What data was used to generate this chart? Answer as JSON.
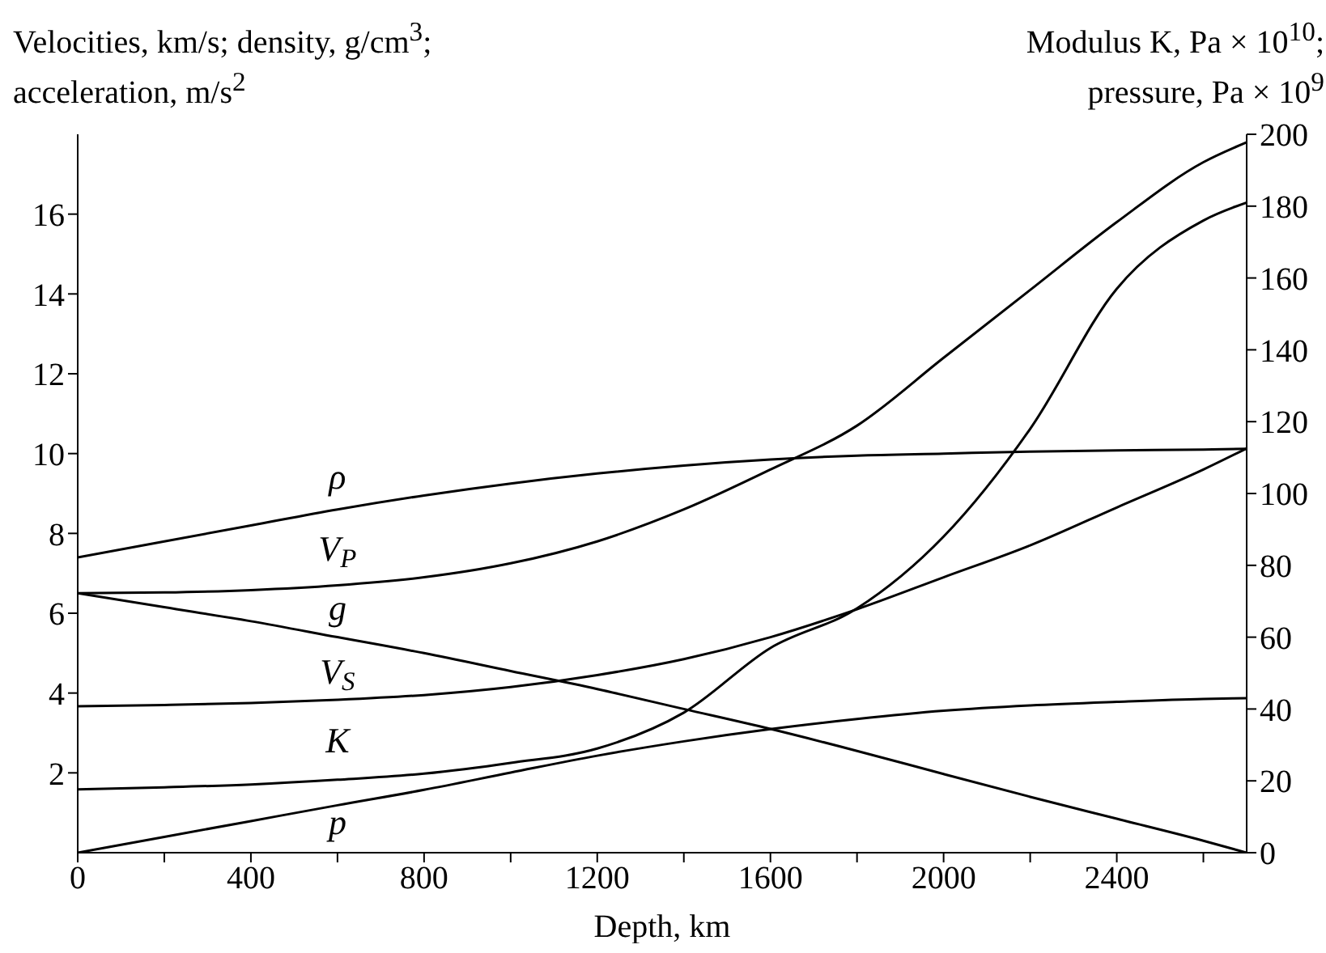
{
  "chart_data": {
    "type": "line",
    "xlabel": "Depth, km",
    "ylabel": "Velocities, km/s; density, g/cm$^{3}$; acceleration, m/s$^{2}$",
    "y2label": "Modulus K, Pa × 10$^{10}$; pressure, Pa × 10$^{9}$",
    "x": [
      0,
      200,
      400,
      600,
      800,
      1000,
      1200,
      1400,
      1600,
      1800,
      2000,
      2200,
      2400,
      2600,
      2700
    ],
    "series": [
      {
        "name": "ρ",
        "color": "#000000",
        "values": [
          7.4,
          7.8,
          8.2,
          8.6,
          8.95,
          9.25,
          9.5,
          9.7,
          9.85,
          9.95,
          10.0,
          10.05,
          10.08,
          10.1,
          10.12
        ]
      },
      {
        "name": "V$_{P}$",
        "color": "#000000",
        "values": [
          6.5,
          6.52,
          6.58,
          6.7,
          6.9,
          7.25,
          7.8,
          8.6,
          9.6,
          10.7,
          12.4,
          14.1,
          15.8,
          17.3,
          17.8
        ]
      },
      {
        "name": "g",
        "color": "#000000",
        "values": [
          6.5,
          6.15,
          5.8,
          5.4,
          5.0,
          4.55,
          4.1,
          3.6,
          3.1,
          2.55,
          1.97,
          1.4,
          0.85,
          0.3,
          0
        ]
      },
      {
        "name": "V$_{S}$",
        "color": "#000000",
        "values": [
          3.67,
          3.7,
          3.75,
          3.83,
          3.95,
          4.15,
          4.45,
          4.85,
          5.4,
          6.1,
          6.9,
          7.7,
          8.65,
          9.6,
          10.13
        ]
      },
      {
        "name": "K",
        "color": "#000000",
        "axis": "y2",
        "values": [
          17.6,
          18.2,
          19,
          20.3,
          22,
          25,
          29,
          39,
          57,
          68,
          88,
          118,
          157,
          176,
          181
        ]
      },
      {
        "name": "p",
        "color": "#000000",
        "axis": "y2",
        "values": [
          0,
          4.4,
          8.8,
          13.2,
          17.5,
          22.3,
          27,
          31,
          34.4,
          37.2,
          39.5,
          41,
          42,
          42.8,
          43
        ]
      }
    ],
    "xlim": [
      0,
      2700
    ],
    "xticks": [
      0,
      {
        "value": 200,
        "label": null
      },
      400,
      {
        "value": 600,
        "label": null
      },
      800,
      {
        "value": 1000,
        "label": null
      },
      1200,
      {
        "value": 1400,
        "label": null
      },
      1600,
      {
        "value": 1800,
        "label": null
      },
      2000,
      {
        "value": 2200,
        "label": null
      },
      2400,
      {
        "value": 2600,
        "label": null
      }
    ],
    "ylim": [
      0,
      18
    ],
    "yticks": [
      2,
      4,
      6,
      8,
      10,
      12,
      14,
      16
    ],
    "y2lim": [
      0,
      200
    ],
    "y2ticks": [
      0,
      20,
      40,
      60,
      80,
      100,
      120,
      140,
      160,
      180,
      200
    ],
    "grid": false,
    "legend": false,
    "marker": "none",
    "line_style": "solid"
  }
}
